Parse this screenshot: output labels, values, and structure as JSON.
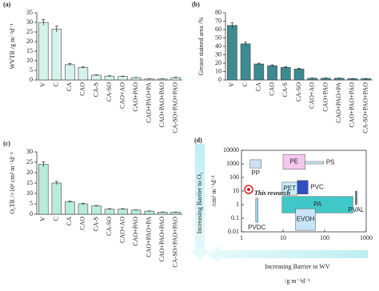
{
  "chart_data": [
    {
      "type": "bar",
      "panel": "(a)",
      "ylabel": "WVTR /g m⁻²d⁻¹",
      "color": "#d6f2ec",
      "categories": [
        "V",
        "C",
        "CA",
        "CAO",
        "CA-S",
        "CA-SO",
        "CAO+AO",
        "CAO+PAO",
        "CAO+PAO+PA",
        "CAO+PAO+PAO",
        "CA-SO+PAO+PAO"
      ],
      "values": [
        30,
        26.5,
        8,
        6.5,
        2.5,
        2,
        1.8,
        1.2,
        0.5,
        0.5,
        1.2
      ],
      "errors": [
        1.5,
        1.5,
        0.5,
        0.3,
        0.2,
        0.2,
        0.2,
        0.1,
        0.1,
        0.1,
        0.2
      ],
      "ylim": [
        0,
        35
      ],
      "yticks": [
        0,
        5,
        10,
        15,
        20,
        25,
        30,
        35
      ]
    },
    {
      "type": "bar",
      "panel": "(b)",
      "ylabel": "Grease stained area /%",
      "color": "#3d8a90",
      "categories": [
        "V",
        "C",
        "CA",
        "CAO",
        "CA-S",
        "CA-SO",
        "CAO+AO",
        "CAO+PAO",
        "CAO+PAO+PA",
        "CAO+PAO+PAO",
        "CA-SO+PAO+PAO"
      ],
      "values": [
        65,
        43,
        19,
        17,
        15,
        13,
        2,
        2,
        2,
        1.5,
        1.5
      ],
      "errors": [
        3,
        2,
        1,
        1,
        1,
        1,
        0.3,
        0.3,
        0.3,
        0.3,
        0.3
      ],
      "ylim": [
        0,
        80
      ],
      "yticks": [
        0,
        10,
        20,
        30,
        40,
        50,
        60,
        70,
        80
      ]
    },
    {
      "type": "bar",
      "panel": "(c)",
      "ylabel": "O₂TR /×10² cm³ m⁻²d⁻¹",
      "color": "#b8ecd8",
      "categories": [
        "V",
        "C",
        "CA",
        "CAO",
        "CA-S",
        "CA-SO",
        "CAO+AO",
        "CAO+PAO",
        "CAO+PAO+PA",
        "CAO+PAO+PAO",
        "CA-SO+PAO+PAO"
      ],
      "values": [
        24,
        15,
        6,
        5,
        4,
        2.5,
        2.5,
        2,
        1.5,
        1,
        1
      ],
      "errors": [
        1.2,
        0.8,
        0.3,
        0.3,
        0.2,
        0.2,
        0.2,
        0.1,
        0.1,
        0.1,
        0.1
      ],
      "ylim": [
        0,
        30
      ],
      "yticks": [
        0,
        5,
        10,
        15,
        20,
        25,
        30
      ]
    },
    {
      "type": "range",
      "panel": "(d)",
      "xscale": "log",
      "yscale": "log",
      "ylabel": "/cm³ m⁻²d⁻¹",
      "xlabel": "/g m⁻²d⁻¹",
      "yarrow": "Increasing Barrier to O₂",
      "xarrow": "Increasing Barrier to WV",
      "annotation": "This research",
      "xlim": [
        1,
        1000
      ],
      "ylim": [
        0.01,
        10000
      ],
      "xticks": [
        1,
        10,
        100,
        1000
      ],
      "yticks": [
        0.01,
        0.1,
        1,
        10,
        100,
        1000,
        10000
      ],
      "regions": [
        {
          "name": "PP",
          "x": [
            1.6,
            3
          ],
          "y": [
            500,
            2000
          ],
          "color": "#cfe0f0"
        },
        {
          "name": "PE",
          "x": [
            10,
            34
          ],
          "y": [
            400,
            5000
          ],
          "color": "#f4c8ec"
        },
        {
          "name": "PS",
          "x": [
            34,
            95
          ],
          "y": [
            1000,
            1500
          ],
          "color": "#c8ecf4"
        },
        {
          "name": "PET",
          "x": [
            9.5,
            22
          ],
          "y": [
            5,
            45
          ],
          "color": "#c8ecf8"
        },
        {
          "name": "PVC",
          "x": [
            22,
            40
          ],
          "y": [
            6,
            60
          ],
          "color": "#3050c0"
        },
        {
          "name": "PA",
          "x": [
            9.5,
            480
          ],
          "y": [
            0.25,
            4
          ],
          "color": "#40c8c8"
        },
        {
          "name": "EVOH",
          "x": [
            20,
            60
          ],
          "y": [
            0.013,
            0.5
          ],
          "color": "#c8e4f8"
        },
        {
          "name": "PVDC",
          "x": [
            2.2,
            2.5
          ],
          "y": [
            0.05,
            3
          ],
          "color": "#9ad8f0"
        },
        {
          "name": "PVAL",
          "x": [
            550,
            600
          ],
          "y": [
            1,
            10
          ],
          "color": "#607070"
        }
      ]
    }
  ]
}
